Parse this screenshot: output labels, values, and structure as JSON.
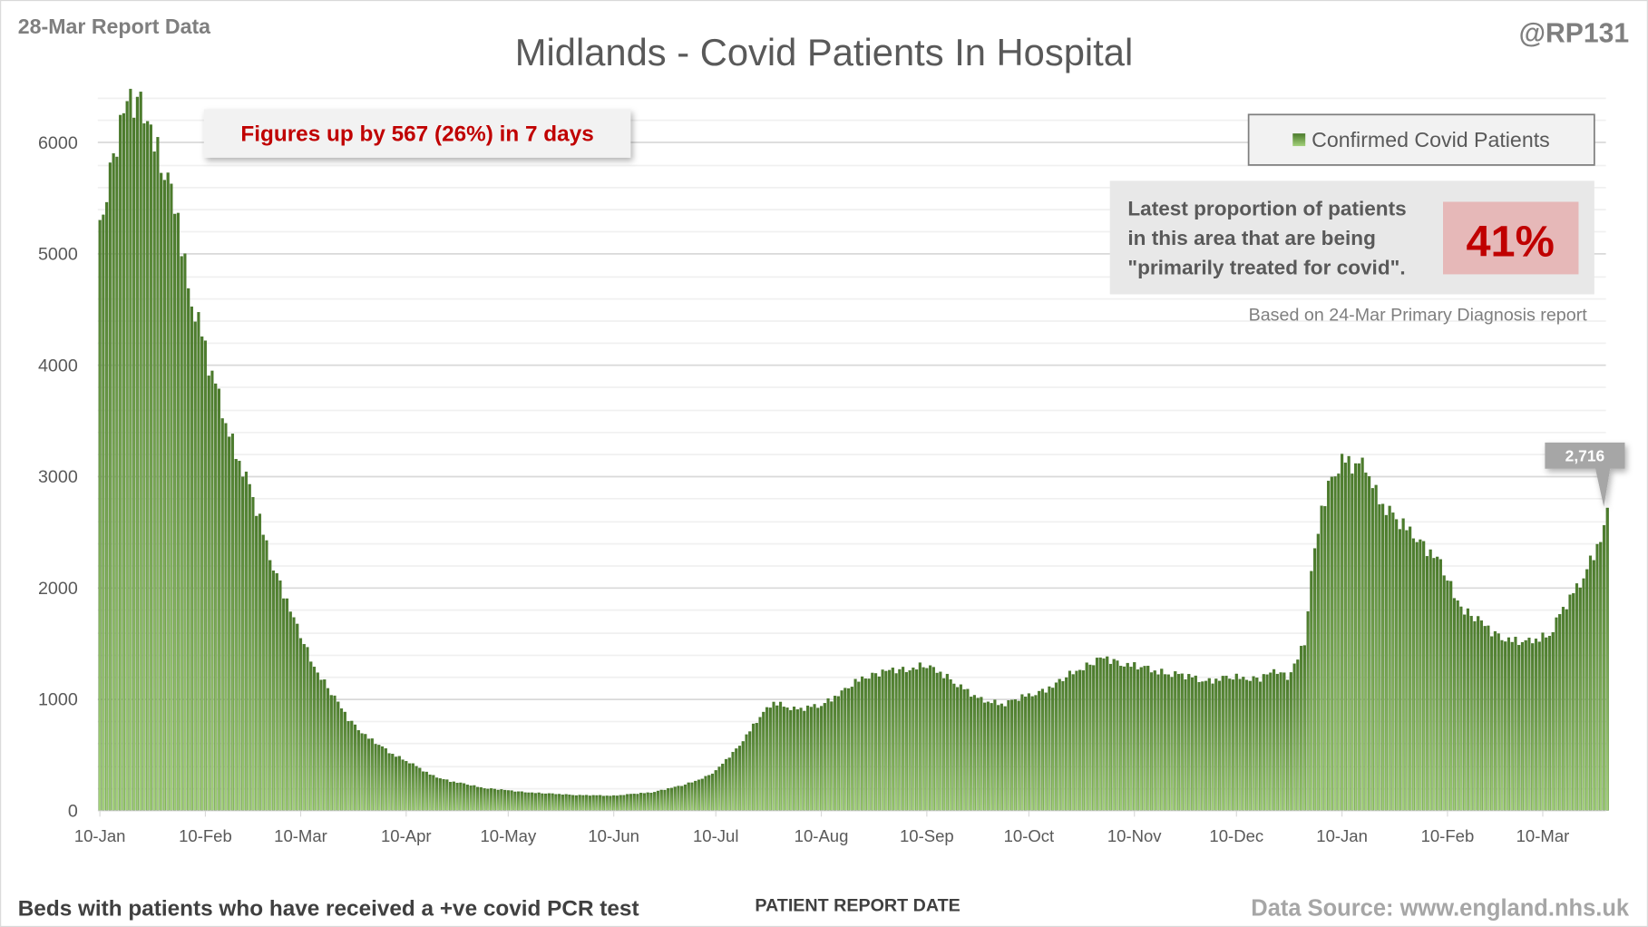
{
  "header": {
    "report_date": "28-Mar Report Data",
    "title": "Midlands - Covid Patients In Hospital",
    "handle": "@RP131"
  },
  "callout": "Figures up by 567 (26%) in 7 days",
  "legend": {
    "label": "Confirmed Covid Patients"
  },
  "info_box": {
    "lines": [
      "Latest proportion of patients",
      "in this area that are being",
      "\"primarily treated for covid\"."
    ],
    "value": "41%",
    "value_fraction": 0.41,
    "note": "Based on 24-Mar Primary Diagnosis report"
  },
  "footer": {
    "left": "Beds with patients who have received a +ve covid PCR test",
    "center": "PATIENT REPORT DATE",
    "right": "Data Source: www.england.nhs.uk"
  },
  "colors": {
    "bar_top": "#4a7a2a",
    "bar_bottom": "#a3d17a",
    "accent_red": "#c00000"
  },
  "chart_data": {
    "type": "bar",
    "title": "Midlands - Covid Patients In Hospital",
    "xlabel": "PATIENT REPORT DATE",
    "ylabel": "",
    "ylim": [
      0,
      6400
    ],
    "y_ticks": [
      "0",
      "1000",
      "2000",
      "3000",
      "4000",
      "5000",
      "6000"
    ],
    "x_ticks": [
      {
        "label": "10-Jan",
        "day": 0
      },
      {
        "label": "10-Feb",
        "day": 31
      },
      {
        "label": "10-Mar",
        "day": 59
      },
      {
        "label": "10-Apr",
        "day": 90
      },
      {
        "label": "10-May",
        "day": 120
      },
      {
        "label": "10-Jun",
        "day": 151
      },
      {
        "label": "10-Jul",
        "day": 181
      },
      {
        "label": "10-Aug",
        "day": 212
      },
      {
        "label": "10-Sep",
        "day": 243
      },
      {
        "label": "10-Oct",
        "day": 273
      },
      {
        "label": "10-Nov",
        "day": 304
      },
      {
        "label": "10-Dec",
        "day": 334
      },
      {
        "label": "10-Jan",
        "day": 365
      },
      {
        "label": "10-Feb",
        "day": 396
      },
      {
        "label": "10-Mar",
        "day": 424
      }
    ],
    "num_days": 444,
    "series": [
      {
        "name": "Confirmed Covid Patients",
        "sample_days": [
          0,
          2,
          5,
          8,
          11,
          14,
          17,
          20,
          23,
          26,
          29,
          32,
          36,
          39,
          42,
          45,
          48,
          51,
          54,
          57,
          60,
          63,
          68,
          73,
          79,
          85,
          91,
          97,
          103,
          113,
          122,
          131,
          141,
          151,
          162,
          171,
          178,
          181,
          187,
          193,
          198,
          205,
          212,
          218,
          224,
          233,
          242,
          249,
          258,
          266,
          272,
          280,
          286,
          295,
          301,
          310,
          320,
          326,
          335,
          341,
          346,
          349,
          354,
          356,
          359,
          362,
          365,
          369,
          372,
          375,
          378,
          381,
          386,
          391,
          394,
          398,
          401,
          405,
          409,
          413,
          416,
          419,
          426,
          429,
          432,
          435,
          439,
          442,
          443
        ],
        "sample_values": [
          5300,
          5600,
          6000,
          6300,
          6380,
          6300,
          5900,
          5600,
          5300,
          4700,
          4400,
          4000,
          3600,
          3300,
          3050,
          2800,
          2500,
          2200,
          1950,
          1700,
          1500,
          1300,
          1050,
          820,
          650,
          520,
          430,
          320,
          260,
          200,
          170,
          150,
          135,
          130,
          160,
          220,
          300,
          350,
          550,
          800,
          970,
          900,
          950,
          1050,
          1200,
          1250,
          1300,
          1200,
          1000,
          950,
          1030,
          1100,
          1250,
          1360,
          1320,
          1250,
          1200,
          1160,
          1200,
          1180,
          1250,
          1200,
          1500,
          2100,
          2700,
          3000,
          3150,
          3080,
          3100,
          2850,
          2700,
          2600,
          2500,
          2300,
          2200,
          1950,
          1800,
          1700,
          1600,
          1550,
          1520,
          1500,
          1580,
          1750,
          1900,
          2050,
          2300,
          2500,
          2716
        ]
      }
    ],
    "data_label": "2,716",
    "legend_position": "top-right",
    "grid": true
  }
}
